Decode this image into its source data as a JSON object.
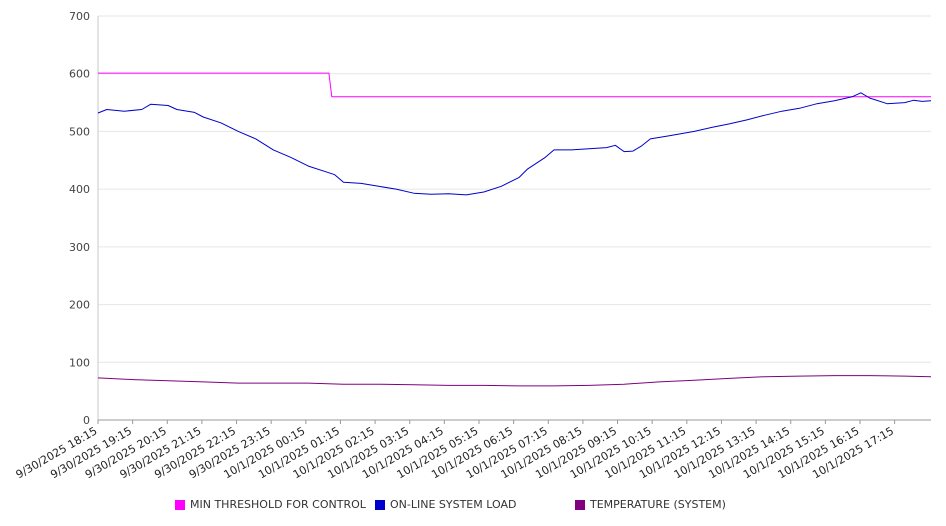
{
  "chart_data": {
    "type": "line",
    "title": "",
    "xlabel": "",
    "ylabel": "",
    "ylim": [
      0,
      700
    ],
    "yticks": [
      0,
      100,
      200,
      300,
      400,
      500,
      600,
      700
    ],
    "grid": "horizontal",
    "legend_position": "bottom",
    "x_start": "2025-09-30 18:15",
    "x_end": "2025-10-01 18:00",
    "x_tick_labels": [
      "9/30/2025 18:15",
      "9/30/2025 19:15",
      "9/30/2025 20:15",
      "9/30/2025 21:15",
      "9/30/2025 22:15",
      "9/30/2025 23:15",
      "10/1/2025 00:15",
      "10/1/2025 01:15",
      "10/1/2025 02:15",
      "10/1/2025 03:15",
      "10/1/2025 04:15",
      "10/1/2025 05:15",
      "10/1/2025 06:15",
      "10/1/2025 07:15",
      "10/1/2025 08:15",
      "10/1/2025 09:15",
      "10/1/2025 10:15",
      "10/1/2025 11:15",
      "10/1/2025 12:15",
      "10/1/2025 13:15",
      "10/1/2025 14:15",
      "10/1/2025 15:15",
      "10/1/2025 16:15",
      "10/1/2025 17:15"
    ],
    "series": [
      {
        "name": "MIN THRESHOLD FOR CONTROL",
        "color": "#ff00ff",
        "points": [
          [
            "2025-09-30 18:15",
            601
          ],
          [
            "2025-10-01 00:50",
            601
          ],
          [
            "2025-10-01 00:55",
            560
          ],
          [
            "2025-10-01 18:00",
            560
          ]
        ]
      },
      {
        "name": "ON-LINE SYSTEM LOAD",
        "color": "#0000cc",
        "points": [
          [
            "2025-09-30 18:15",
            532
          ],
          [
            "2025-09-30 18:30",
            538
          ],
          [
            "2025-09-30 19:00",
            535
          ],
          [
            "2025-09-30 19:30",
            538
          ],
          [
            "2025-09-30 19:45",
            547
          ],
          [
            "2025-09-30 20:15",
            545
          ],
          [
            "2025-09-30 20:30",
            538
          ],
          [
            "2025-09-30 21:00",
            533
          ],
          [
            "2025-09-30 21:15",
            525
          ],
          [
            "2025-09-30 21:45",
            515
          ],
          [
            "2025-09-30 22:15",
            500
          ],
          [
            "2025-09-30 22:45",
            487
          ],
          [
            "2025-09-30 23:15",
            468
          ],
          [
            "2025-09-30 23:45",
            455
          ],
          [
            "2025-10-01 00:15",
            440
          ],
          [
            "2025-10-01 00:45",
            430
          ],
          [
            "2025-10-01 01:00",
            425
          ],
          [
            "2025-10-01 01:15",
            412
          ],
          [
            "2025-10-01 01:45",
            410
          ],
          [
            "2025-10-01 02:15",
            405
          ],
          [
            "2025-10-01 02:45",
            400
          ],
          [
            "2025-10-01 03:15",
            393
          ],
          [
            "2025-10-01 03:45",
            391
          ],
          [
            "2025-10-01 04:15",
            392
          ],
          [
            "2025-10-01 04:45",
            390
          ],
          [
            "2025-10-01 05:15",
            395
          ],
          [
            "2025-10-01 05:45",
            405
          ],
          [
            "2025-10-01 06:15",
            420
          ],
          [
            "2025-10-01 06:30",
            435
          ],
          [
            "2025-10-01 07:00",
            455
          ],
          [
            "2025-10-01 07:15",
            468
          ],
          [
            "2025-10-01 07:45",
            468
          ],
          [
            "2025-10-01 08:15",
            470
          ],
          [
            "2025-10-01 08:45",
            472
          ],
          [
            "2025-10-01 09:00",
            476
          ],
          [
            "2025-10-01 09:15",
            465
          ],
          [
            "2025-10-01 09:30",
            466
          ],
          [
            "2025-10-01 09:45",
            475
          ],
          [
            "2025-10-01 10:00",
            487
          ],
          [
            "2025-10-01 10:30",
            492
          ],
          [
            "2025-10-01 11:15",
            500
          ],
          [
            "2025-10-01 11:45",
            507
          ],
          [
            "2025-10-01 12:15",
            513
          ],
          [
            "2025-10-01 12:45",
            520
          ],
          [
            "2025-10-01 13:15",
            528
          ],
          [
            "2025-10-01 13:45",
            535
          ],
          [
            "2025-10-01 14:15",
            540
          ],
          [
            "2025-10-01 14:45",
            548
          ],
          [
            "2025-10-01 15:15",
            553
          ],
          [
            "2025-10-01 15:45",
            560
          ],
          [
            "2025-10-01 16:00",
            567
          ],
          [
            "2025-10-01 16:15",
            558
          ],
          [
            "2025-10-01 16:45",
            548
          ],
          [
            "2025-10-01 17:15",
            550
          ],
          [
            "2025-10-01 17:30",
            554
          ],
          [
            "2025-10-01 17:45",
            552
          ],
          [
            "2025-10-01 18:00",
            553
          ]
        ]
      },
      {
        "name": "TEMPERATURE (SYSTEM)",
        "color": "#800080",
        "points": [
          [
            "2025-09-30 18:15",
            73
          ],
          [
            "2025-09-30 19:15",
            70
          ],
          [
            "2025-09-30 20:15",
            68
          ],
          [
            "2025-09-30 21:15",
            66
          ],
          [
            "2025-09-30 22:15",
            64
          ],
          [
            "2025-09-30 23:15",
            64
          ],
          [
            "2025-10-01 00:15",
            64
          ],
          [
            "2025-10-01 01:15",
            62
          ],
          [
            "2025-10-01 02:15",
            62
          ],
          [
            "2025-10-01 03:15",
            61
          ],
          [
            "2025-10-01 04:15",
            60
          ],
          [
            "2025-10-01 05:15",
            60
          ],
          [
            "2025-10-01 06:15",
            59
          ],
          [
            "2025-10-01 07:15",
            59
          ],
          [
            "2025-10-01 08:15",
            60
          ],
          [
            "2025-10-01 09:15",
            62
          ],
          [
            "2025-10-01 10:15",
            66
          ],
          [
            "2025-10-01 11:15",
            69
          ],
          [
            "2025-10-01 12:15",
            72
          ],
          [
            "2025-10-01 13:15",
            75
          ],
          [
            "2025-10-01 14:15",
            76
          ],
          [
            "2025-10-01 15:15",
            77
          ],
          [
            "2025-10-01 16:15",
            77
          ],
          [
            "2025-10-01 17:15",
            76
          ],
          [
            "2025-10-01 18:00",
            75
          ]
        ]
      }
    ]
  }
}
